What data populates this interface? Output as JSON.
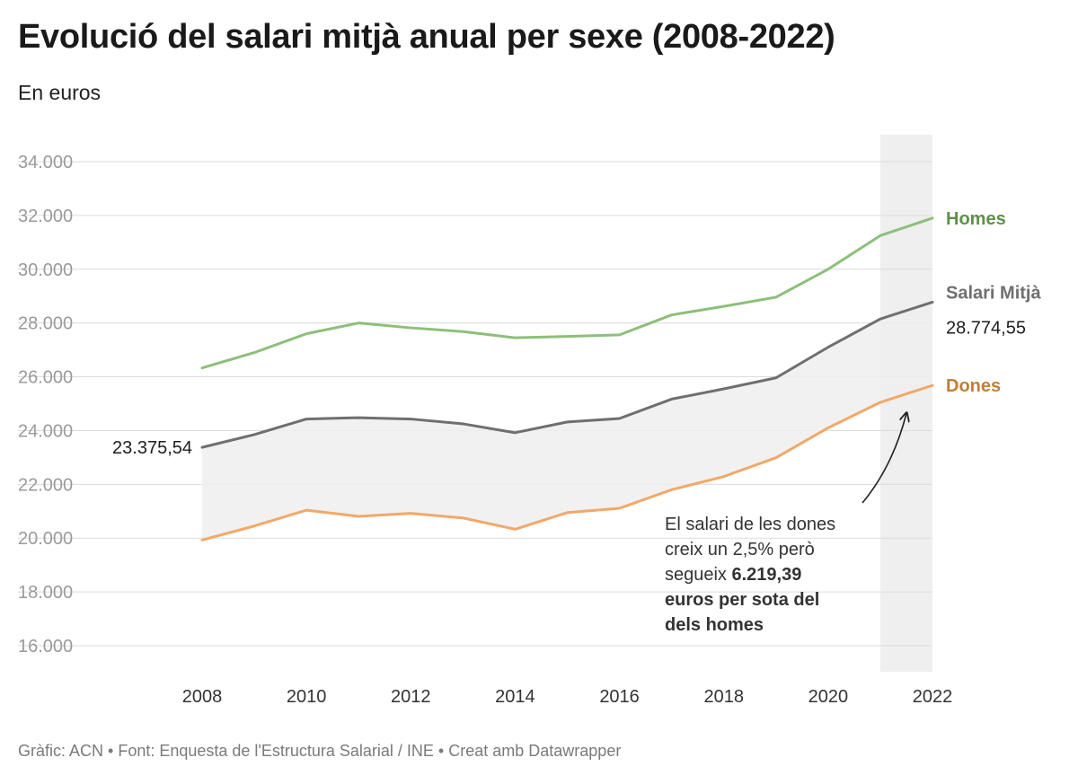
{
  "title": "Evolució del salari mitjà anual per sexe (2008-2022)",
  "subtitle": "En euros",
  "footer": "Gràfic: ACN • Font: Enquesta de l'Estructura Salarial / INE • Creat amb Datawrapper",
  "colors": {
    "homes": "#8dbf7a",
    "dones": "#f2a868",
    "mitja": "#6f6f6f",
    "homes_label": "#5f8f4c",
    "dones_label": "#c07f36",
    "mitja_label": "#6f6f6f",
    "band": "#efefef",
    "highlight": "#efefef",
    "grid": "#dcdcdc"
  },
  "chart_data": {
    "type": "line",
    "x": [
      2008,
      2009,
      2010,
      2011,
      2012,
      2013,
      2014,
      2015,
      2016,
      2017,
      2018,
      2019,
      2020,
      2021,
      2022
    ],
    "xticks": [
      2008,
      2010,
      2012,
      2014,
      2016,
      2018,
      2020,
      2022
    ],
    "ylim": [
      15000,
      35000
    ],
    "yticks": [
      16000,
      18000,
      20000,
      22000,
      24000,
      26000,
      28000,
      30000,
      32000,
      34000
    ],
    "ytick_labels": [
      "16.000",
      "18.000",
      "20.000",
      "22.000",
      "24.000",
      "26.000",
      "28.000",
      "30.000",
      "32.000",
      "34.000"
    ],
    "highlight_range": [
      2021,
      2022
    ],
    "series": [
      {
        "key": "homes",
        "name": "Homes",
        "values": [
          26330,
          26900,
          27600,
          28000,
          27820,
          27680,
          27450,
          27500,
          27560,
          28300,
          28620,
          28960,
          30000,
          31250,
          31900
        ]
      },
      {
        "key": "mitja",
        "name": "Salari Mitjà",
        "values": [
          23375.54,
          23850,
          24430,
          24480,
          24430,
          24250,
          23920,
          24320,
          24450,
          25170,
          25550,
          25960,
          27100,
          28150,
          28774.55
        ]
      },
      {
        "key": "dones",
        "name": "Dones",
        "values": [
          19930,
          20450,
          21040,
          20810,
          20920,
          20750,
          20330,
          20950,
          21110,
          21800,
          22290,
          22990,
          24100,
          25050,
          25680
        ]
      }
    ],
    "start_label": "23.375,54",
    "end_label": "28.774,55",
    "annotation": {
      "lines": [
        "El salari de les dones",
        "creix un 2,5% però",
        "segueix "
      ],
      "bold_inline": "6.219,39",
      "bold_lines": [
        "euros per sota del",
        "dels homes"
      ],
      "arrow_target_year": 2021.5
    }
  }
}
